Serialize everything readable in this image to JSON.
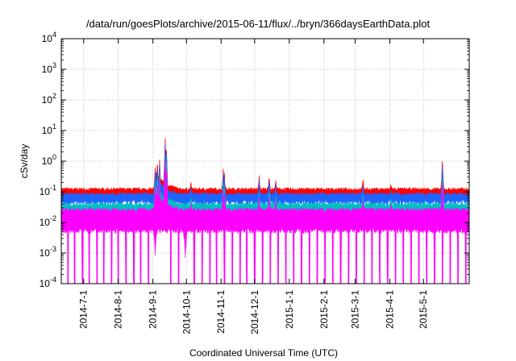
{
  "chart_data": {
    "type": "area",
    "title": "/data/run/goesPlots/archive/2015-06-11/flux/../bryn/366daysEarthData.plot",
    "xlabel": "Coordinated Universal Time (UTC)",
    "ylabel": "cSv/day",
    "yscale": "log",
    "ylim": [
      0.0001,
      10000
    ],
    "xlim": [
      "2014-06-11",
      "2015-06-11"
    ],
    "y_ticks": [
      {
        "base": "10",
        "exp": "4",
        "value": 10000
      },
      {
        "base": "10",
        "exp": "3",
        "value": 1000
      },
      {
        "base": "10",
        "exp": "2",
        "value": 100
      },
      {
        "base": "10",
        "exp": "1",
        "value": 10
      },
      {
        "base": "10",
        "exp": "0",
        "value": 1
      },
      {
        "base": "10",
        "exp": "-1",
        "value": 0.1
      },
      {
        "base": "10",
        "exp": "-2",
        "value": 0.01
      },
      {
        "base": "10",
        "exp": "-3",
        "value": 0.001
      },
      {
        "base": "10",
        "exp": "-4",
        "value": 0.0001
      }
    ],
    "x_ticks": [
      {
        "label": "2014-7-1",
        "date": "2014-07-01"
      },
      {
        "label": "2014-8-1",
        "date": "2014-08-01"
      },
      {
        "label": "2014-9-1",
        "date": "2014-09-01"
      },
      {
        "label": "2014-10-1",
        "date": "2014-10-01"
      },
      {
        "label": "2014-11-1",
        "date": "2014-11-01"
      },
      {
        "label": "2014-12-1",
        "date": "2014-12-01"
      },
      {
        "label": "2015-1-1",
        "date": "2015-01-01"
      },
      {
        "label": "2015-2-1",
        "date": "2015-02-01"
      },
      {
        "label": "2015-3-1",
        "date": "2015-03-01"
      },
      {
        "label": "2015-4-1",
        "date": "2015-04-01"
      },
      {
        "label": "2015-5-1",
        "date": "2015-05-01"
      }
    ],
    "grid": true,
    "series": [
      {
        "color": "#ff0000",
        "baseline": 0.085
      },
      {
        "color": "#1e64ff",
        "baseline": 0.065
      },
      {
        "color": "#00bfbf",
        "baseline": 0.035
      },
      {
        "color": "#ff00ff",
        "baseline": 0.025,
        "floor": 0.003
      }
    ],
    "events": [
      {
        "date": "2014-09-03",
        "value": 0.5
      },
      {
        "date": "2014-09-05",
        "value": 0.9
      },
      {
        "date": "2014-09-07",
        "value": 1.0
      },
      {
        "date": "2014-09-12",
        "value": 5.0
      },
      {
        "date": "2014-09-13",
        "value": 3.0
      },
      {
        "date": "2014-10-05",
        "value": 0.15
      },
      {
        "date": "2014-11-03",
        "value": 0.55
      },
      {
        "date": "2014-11-04",
        "value": 0.3
      },
      {
        "date": "2014-12-05",
        "value": 0.25
      },
      {
        "date": "2014-12-14",
        "value": 0.3
      },
      {
        "date": "2014-12-20",
        "value": 0.2
      },
      {
        "date": "2015-03-08",
        "value": 0.2
      },
      {
        "date": "2015-04-02",
        "value": 0.15
      },
      {
        "date": "2015-05-18",
        "value": 0.95
      }
    ],
    "dips": [
      {
        "date": "2014-09-03",
        "value": 0.004
      },
      {
        "date": "2014-09-30",
        "value": 0.003
      }
    ],
    "low_dropout_dates": [
      "2014-06-17",
      "2014-06-23",
      "2014-06-30",
      "2014-07-06",
      "2014-07-13",
      "2014-07-19",
      "2014-07-26",
      "2014-08-01",
      "2014-08-08",
      "2014-08-15",
      "2014-08-21",
      "2014-08-28",
      "2014-09-17",
      "2014-09-24",
      "2014-10-08",
      "2014-10-15",
      "2014-10-22",
      "2014-10-28",
      "2014-11-04",
      "2014-11-11",
      "2014-11-18",
      "2014-11-24",
      "2014-12-01",
      "2014-12-08",
      "2014-12-15",
      "2014-12-22",
      "2014-12-29",
      "2015-01-05",
      "2015-01-12",
      "2015-01-19",
      "2015-01-26",
      "2015-02-02",
      "2015-02-09",
      "2015-02-16",
      "2015-02-23",
      "2015-03-02",
      "2015-03-09",
      "2015-03-16",
      "2015-03-23",
      "2015-03-30",
      "2015-04-06",
      "2015-04-13",
      "2015-04-20",
      "2015-04-27",
      "2015-05-04",
      "2015-05-11",
      "2015-05-18",
      "2015-05-25",
      "2015-06-01",
      "2015-06-08"
    ]
  }
}
